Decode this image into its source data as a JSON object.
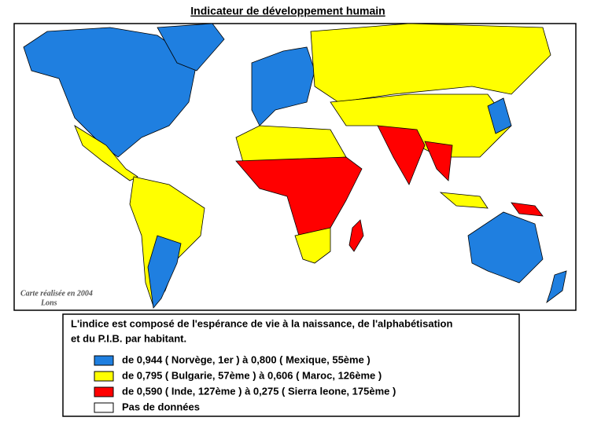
{
  "header": {
    "title": "Indicateur de développement humain"
  },
  "map": {
    "credit": [
      "Carte réalisée en 2004",
      "Lons"
    ]
  },
  "legend": {
    "description": [
      "L'indice est composé de l'espérance de vie à la naissance, de l'alphabétisation",
      "et du P.I.B. par habitant."
    ],
    "items": [
      {
        "label": "de 0,944 ( Norvège, 1er ) à 0,800 ( Mexique, 55ème )",
        "color": "#1f7fe0"
      },
      {
        "label": "de 0,795 ( Bulgarie, 57ème ) à 0,606 ( Maroc, 126ème )",
        "color": "#ffff00"
      },
      {
        "label": "de 0,590 ( Inde, 127ème ) à 0,275 ( Sierra leone, 175ème )",
        "color": "#ff0000"
      },
      {
        "label": "Pas de données",
        "color": "#ffffff"
      }
    ]
  }
}
